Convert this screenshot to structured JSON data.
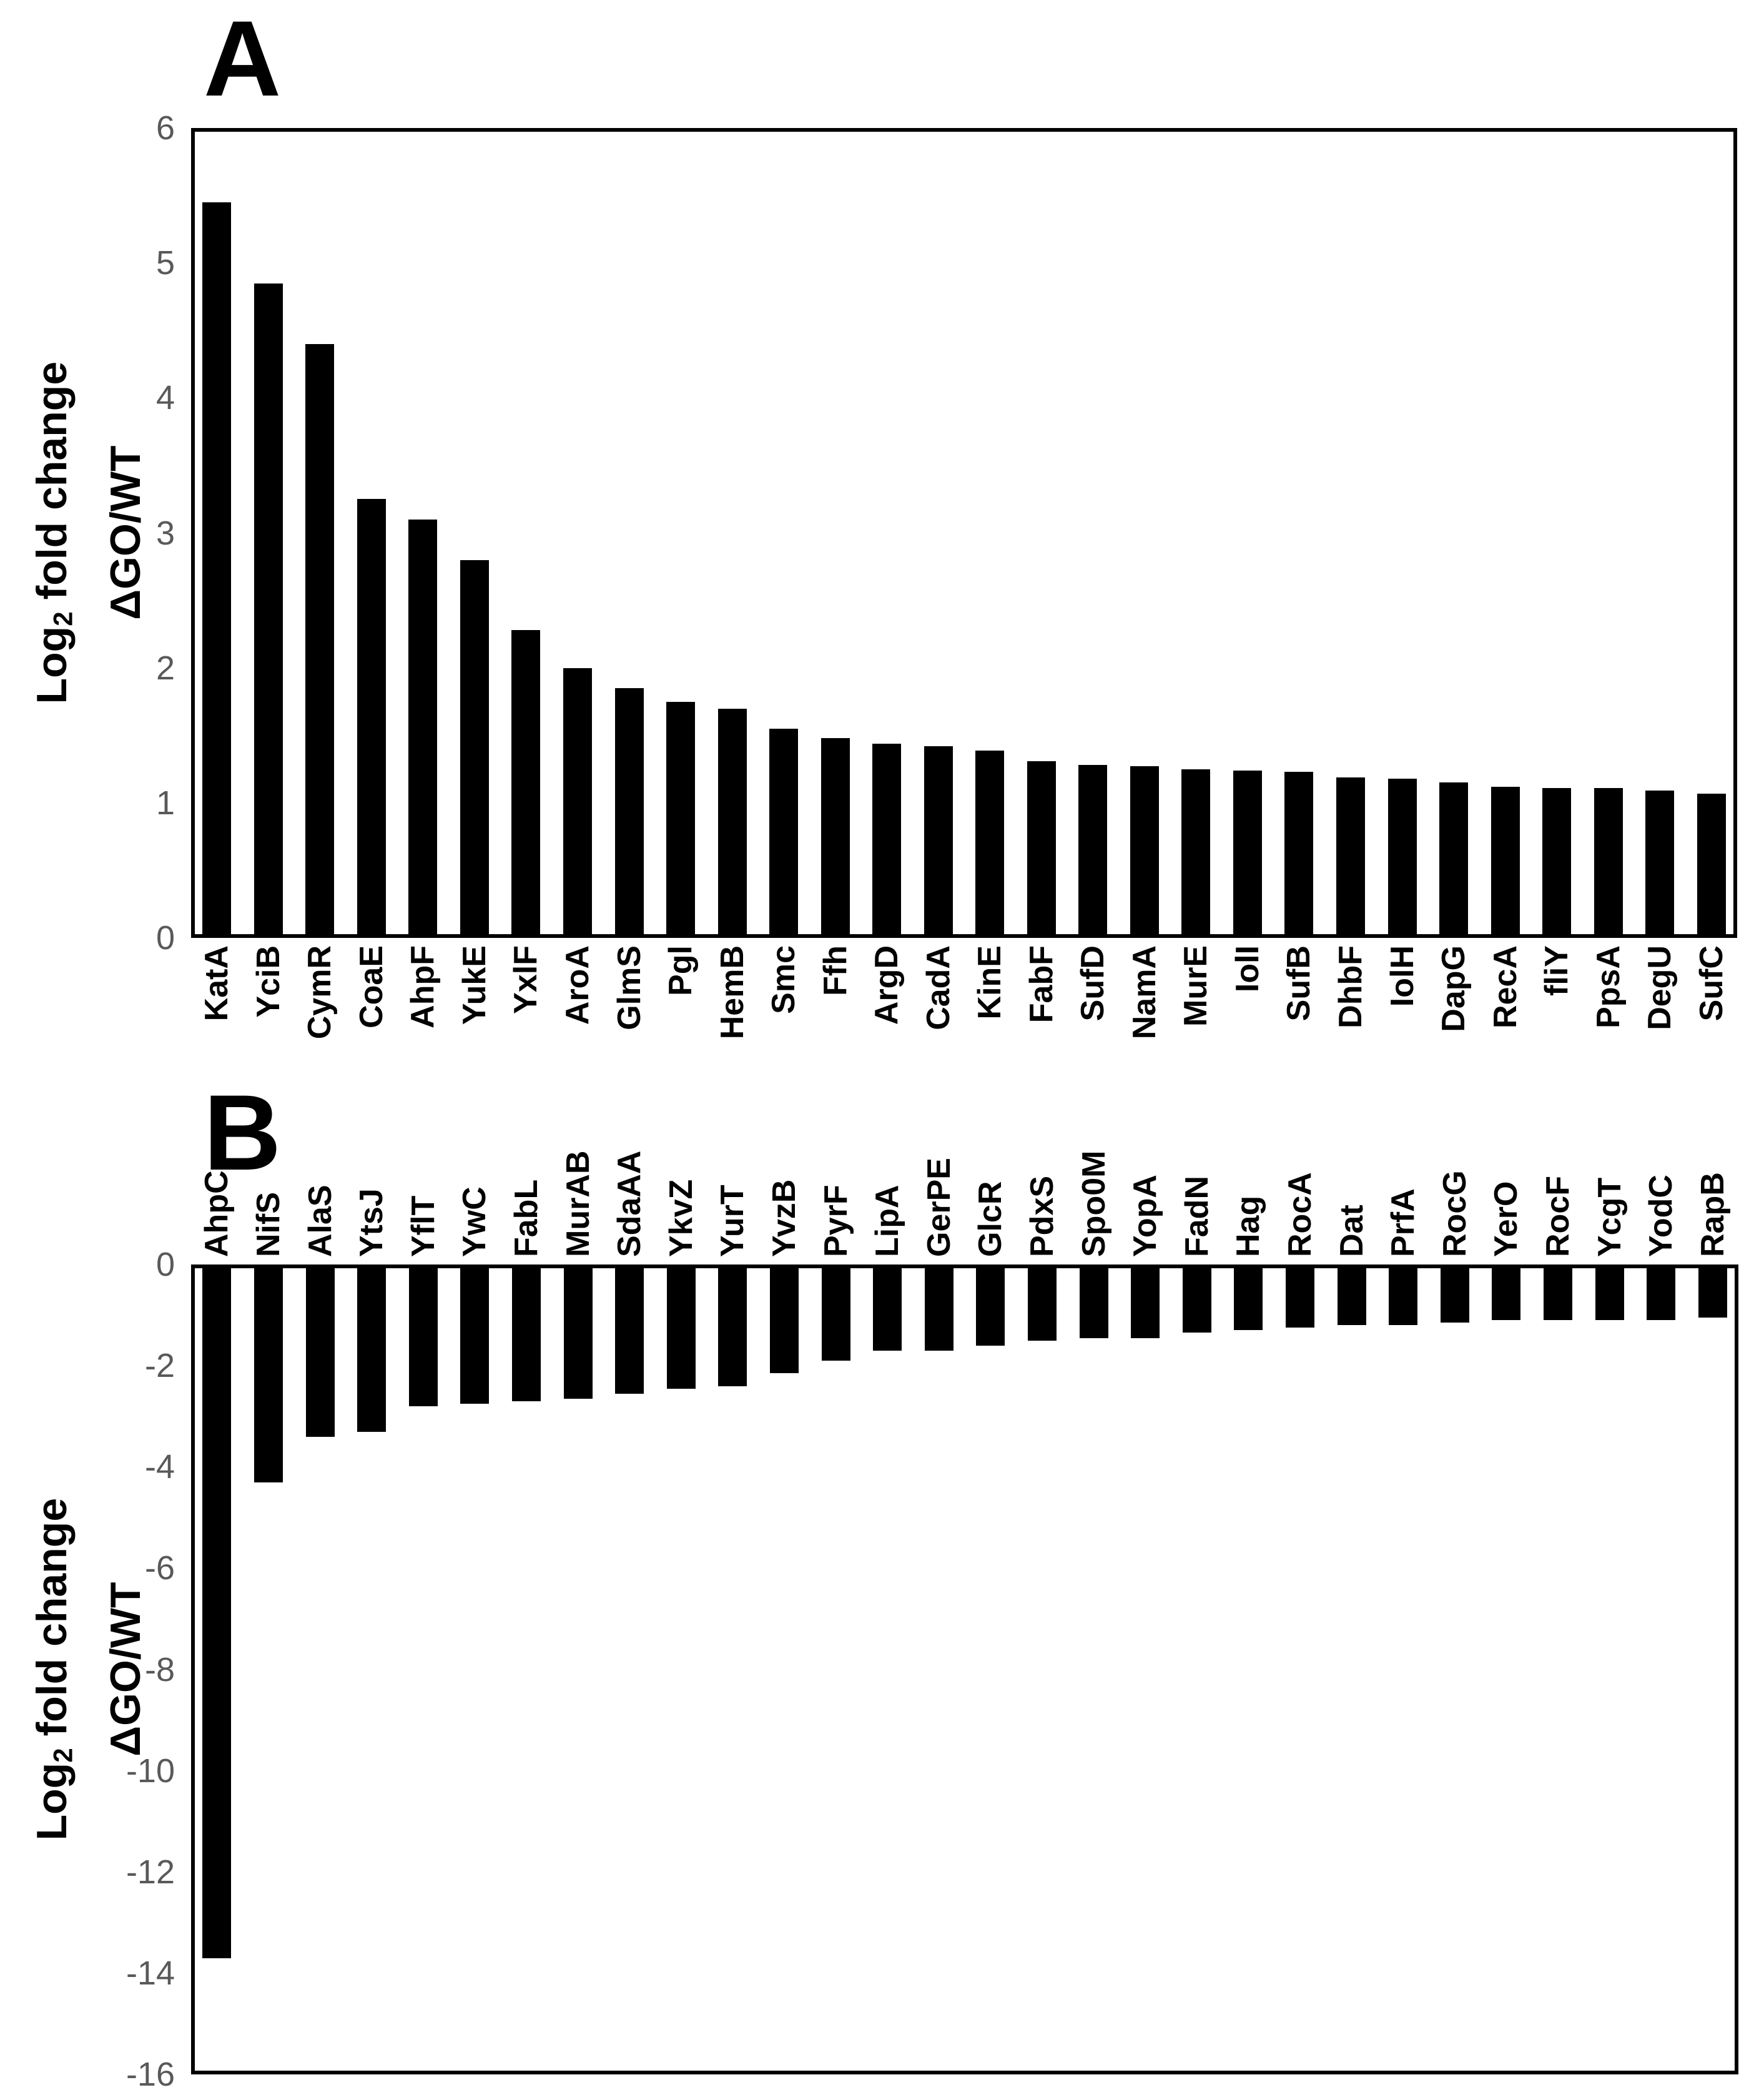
{
  "figure": {
    "background": "#ffffff",
    "bar_color": "#000000",
    "tick_color": "#595959",
    "panels": [
      {
        "letter": "A",
        "ylabel": {
          "log": "Log",
          "sub": "2",
          "rest": " fold change",
          "line2": "ΔGO/WT"
        }
      },
      {
        "letter": "B",
        "ylabel": {
          "log": "Log",
          "sub": "2",
          "rest": " fold change",
          "line2": "ΔGO/WT"
        }
      }
    ]
  },
  "chart_data": [
    {
      "type": "bar",
      "panel": "A",
      "title": "",
      "xlabel": "",
      "ylabel": "Log2 fold change ΔGO/WT",
      "ylim": [
        0,
        6
      ],
      "yticks": [
        0,
        1,
        2,
        3,
        4,
        5,
        6
      ],
      "grid": false,
      "legend": "none",
      "bar_color": "#000000",
      "categories": [
        "KatA",
        "YciB",
        "CymR",
        "CoaE",
        "AhpF",
        "YukE",
        "YxlF",
        "AroA",
        "GlmS",
        "Pgl",
        "HemB",
        "Smc",
        "Ffh",
        "ArgD",
        "CadA",
        "KinE",
        "FabF",
        "SufD",
        "NamA",
        "MurE",
        "IolI",
        "SufB",
        "DhbF",
        "IolH",
        "DapG",
        "RecA",
        "fliY",
        "PpsA",
        "DegU",
        "SufC"
      ],
      "values": [
        5.45,
        4.85,
        4.4,
        3.25,
        3.1,
        2.8,
        2.28,
        2.0,
        1.85,
        1.75,
        1.7,
        1.55,
        1.48,
        1.44,
        1.42,
        1.39,
        1.31,
        1.28,
        1.27,
        1.25,
        1.24,
        1.23,
        1.19,
        1.18,
        1.15,
        1.12,
        1.11,
        1.11,
        1.09,
        1.07
      ]
    },
    {
      "type": "bar",
      "panel": "B",
      "title": "",
      "xlabel": "",
      "ylabel": "Log2 fold change ΔGO/WT",
      "ylim": [
        -16,
        0
      ],
      "yticks": [
        0,
        -2,
        -4,
        -6,
        -8,
        -10,
        -12,
        -14,
        -16
      ],
      "grid": false,
      "legend": "none",
      "bar_color": "#000000",
      "categories": [
        "AhpC",
        "NifS",
        "AlaS",
        "YtsJ",
        "YflT",
        "YwC",
        "FabL",
        "MurAB",
        "SdaAA",
        "YkvZ",
        "YurT",
        "YvzB",
        "PyrF",
        "LipA",
        "GerPE",
        "GlcR",
        "PdxS",
        "Spo0M",
        "YopA",
        "FadN",
        "Hag",
        "RocA",
        "Dat",
        "PrfA",
        "RocG",
        "YerO",
        "RocF",
        "YcgT",
        "YodC",
        "RapB"
      ],
      "values": [
        -13.7,
        -4.3,
        -3.4,
        -3.3,
        -2.8,
        -2.75,
        -2.7,
        -2.65,
        -2.55,
        -2.45,
        -2.4,
        -2.15,
        -1.9,
        -1.7,
        -1.7,
        -1.6,
        -1.5,
        -1.45,
        -1.45,
        -1.35,
        -1.3,
        -1.25,
        -1.2,
        -1.2,
        -1.15,
        -1.1,
        -1.1,
        -1.1,
        -1.1,
        -1.05
      ]
    }
  ]
}
